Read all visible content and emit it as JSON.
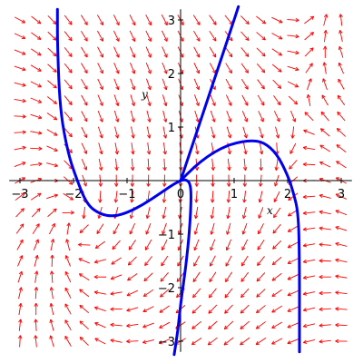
{
  "chart_data": {
    "type": "line",
    "title": "",
    "xlabel": "x",
    "ylabel": "y",
    "xlim": [
      -3.2,
      3.2
    ],
    "ylim": [
      -3.2,
      3.2
    ],
    "xticks": [
      "−3",
      "−2",
      "−1",
      "0",
      "1",
      "2",
      "3"
    ],
    "yticks": [
      "−3",
      "−2",
      "−1",
      "1",
      "2",
      "3"
    ],
    "xtick_values": [
      -3,
      -2,
      -1,
      0,
      1,
      2,
      3
    ],
    "ytick_values": [
      -3,
      -2,
      -1,
      1,
      2,
      3
    ],
    "grid": false,
    "colors": {
      "field": "#ff0000",
      "curves": "#0000ee",
      "axes": "#000000"
    },
    "direction_field": {
      "color": "#ff0000",
      "xrange": [
        -3,
        3
      ],
      "yrange": [
        -3,
        3
      ],
      "nx": 21,
      "ny": 21
    },
    "series": [
      {
        "points": [
          [
            -2.3,
            3.2
          ],
          [
            -2.3,
            2.5
          ],
          [
            -2.25,
            1.3
          ],
          [
            -2.1,
            0.5
          ],
          [
            -1.95,
            0.05
          ],
          [
            -1.75,
            -0.45
          ],
          [
            -1.5,
            -0.63
          ],
          [
            -1.25,
            -0.67
          ],
          [
            -1.0,
            -0.6
          ],
          [
            -0.7,
            -0.45
          ],
          [
            -0.4,
            -0.25
          ],
          [
            -0.15,
            -0.08
          ],
          [
            0,
            0
          ]
        ]
      },
      {
        "points": [
          [
            0,
            0
          ],
          [
            0.2,
            0.6
          ],
          [
            0.4,
            1.2
          ],
          [
            0.6,
            1.8
          ],
          [
            0.8,
            2.4
          ],
          [
            0.95,
            2.85
          ],
          [
            1.08,
            3.25
          ]
        ]
      },
      {
        "points": [
          [
            0,
            0
          ],
          [
            0.25,
            0.25
          ],
          [
            0.5,
            0.45
          ],
          [
            0.75,
            0.6
          ],
          [
            1.0,
            0.7
          ],
          [
            1.3,
            0.75
          ],
          [
            1.55,
            0.72
          ],
          [
            1.8,
            0.5
          ],
          [
            2.0,
            0.1
          ],
          [
            2.1,
            -0.2
          ],
          [
            2.2,
            -0.6
          ],
          [
            2.22,
            -1.5
          ],
          [
            2.22,
            -2.5
          ],
          [
            2.22,
            -3.2
          ]
        ]
      },
      {
        "points": [
          [
            0,
            0
          ],
          [
            0.1,
            0.02
          ],
          [
            0.18,
            -0.05
          ],
          [
            0.2,
            -0.3
          ],
          [
            0.17,
            -0.9
          ],
          [
            0.1,
            -1.6
          ],
          [
            0.0,
            -2.3
          ],
          [
            -0.05,
            -2.8
          ],
          [
            -0.12,
            -3.25
          ]
        ]
      }
    ]
  }
}
